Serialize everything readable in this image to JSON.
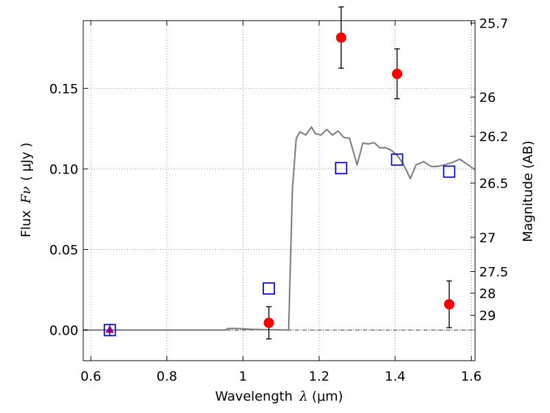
{
  "chart_data": {
    "type": "scatter",
    "xlabel": {
      "prefix": "Wavelength",
      "symbol": "λ",
      "unit": "(μm)"
    },
    "ylabel": {
      "prefix": "Flux",
      "symbol": "Fν",
      "unit": "( μJy )"
    },
    "y2label": "Magnitude (AB)",
    "xlim": [
      0.58,
      1.61
    ],
    "ylim": [
      -0.019,
      0.192
    ],
    "grid": true,
    "x_ticks": [
      {
        "value": 0.6,
        "label": "0.6"
      },
      {
        "value": 0.8,
        "label": "0.8"
      },
      {
        "value": 1.0,
        "label": "1"
      },
      {
        "value": 1.2,
        "label": "1.2"
      },
      {
        "value": 1.4,
        "label": "1.4"
      },
      {
        "value": 1.6,
        "label": "1.6"
      }
    ],
    "y_ticks": [
      {
        "value": 0.0,
        "label": "0.00"
      },
      {
        "value": 0.05,
        "label": "0.05"
      },
      {
        "value": 0.1,
        "label": "0.10"
      },
      {
        "value": 0.15,
        "label": "0.15"
      }
    ],
    "y2_ticks": [
      {
        "mag": 25.7,
        "label": "25.7"
      },
      {
        "mag": 26.0,
        "label": "26"
      },
      {
        "mag": 26.2,
        "label": "26.2"
      },
      {
        "mag": 26.5,
        "label": "26.5"
      },
      {
        "mag": 27.0,
        "label": "27"
      },
      {
        "mag": 27.5,
        "label": "27.5"
      },
      {
        "mag": 28.0,
        "label": "28"
      },
      {
        "mag": 29.0,
        "label": "29"
      }
    ],
    "series": [
      {
        "kind": "line",
        "color": "#808080",
        "x": [
          0.58,
          0.955,
          0.96,
          0.98,
          1.0,
          1.02,
          1.05,
          1.08,
          1.12,
          1.13,
          1.14,
          1.15,
          1.165,
          1.18,
          1.19,
          1.205,
          1.22,
          1.235,
          1.25,
          1.265,
          1.28,
          1.3,
          1.315,
          1.33,
          1.345,
          1.36,
          1.375,
          1.39,
          1.405,
          1.42,
          1.44,
          1.455,
          1.475,
          1.495,
          1.51,
          1.53,
          1.55,
          1.57,
          1.61
        ],
        "y": [
          0.0,
          0.0,
          0.001,
          0.001,
          0.0008,
          0.0005,
          0.0003,
          0.0002,
          0.0,
          0.088,
          0.119,
          0.123,
          0.121,
          0.126,
          0.122,
          0.121,
          0.1245,
          0.121,
          0.1235,
          0.1195,
          0.119,
          0.1025,
          0.116,
          0.1155,
          0.1163,
          0.113,
          0.1132,
          0.1115,
          0.1085,
          0.1035,
          0.094,
          0.1025,
          0.1045,
          0.1015,
          0.1015,
          0.1025,
          0.104,
          0.106,
          0.0995
        ]
      },
      {
        "kind": "points",
        "marker": "circle",
        "color": "#ff0000",
        "x": [
          1.068,
          1.258,
          1.405,
          1.542
        ],
        "y": [
          0.0045,
          0.1815,
          0.159,
          0.016
        ],
        "yerr": [
          0.01,
          0.019,
          0.0155,
          0.0145
        ]
      },
      {
        "kind": "points",
        "marker": "square",
        "color": "#0000ff",
        "x": [
          0.65,
          1.068,
          1.258,
          1.405,
          1.542
        ],
        "y": [
          0.0,
          0.0258,
          0.1005,
          0.1058,
          0.0983
        ]
      },
      {
        "kind": "points",
        "marker": "triangle",
        "color": "#8b008b",
        "x": [
          0.65
        ],
        "y": [
          0.0
        ],
        "yerr": [
          0.0035
        ]
      }
    ],
    "reference_line": {
      "y": 0.0,
      "style": "dashdot",
      "color": "#000000"
    }
  }
}
